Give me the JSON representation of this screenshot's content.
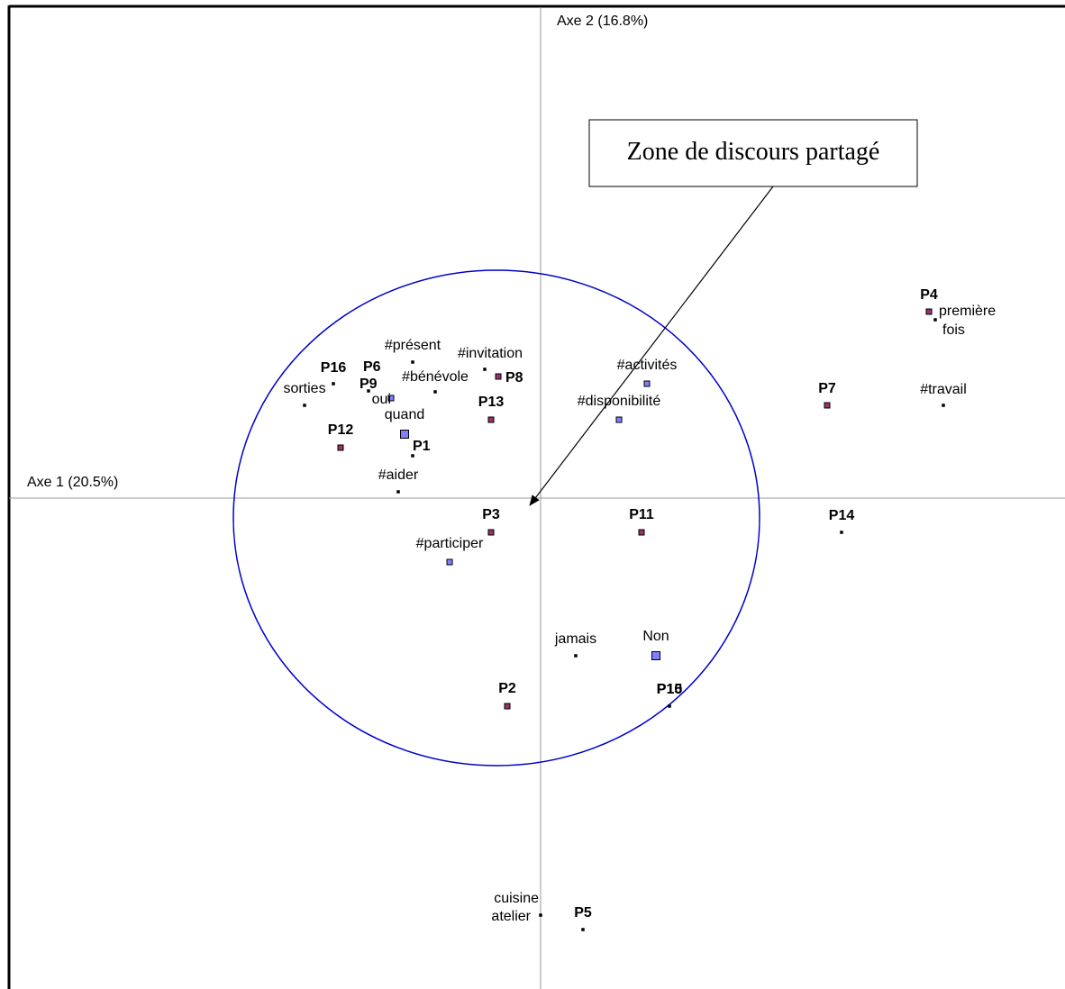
{
  "chart_data": {
    "type": "scatter",
    "title": "",
    "xlabel": "Axe 1 (20.5%)",
    "ylabel": "Axe 2 (16.8%)",
    "xlim": [
      -600,
      582
    ],
    "ylim": [
      -545,
      553
    ],
    "grid": false,
    "annotation": {
      "text": "Zone de discours partagé",
      "arrow_target": [
        -12,
        -8
      ]
    },
    "ellipse": {
      "cx": -49,
      "cy": -22,
      "rx": 292,
      "ry": 275,
      "color": "#0000cc"
    },
    "colors": {
      "P": "#993366",
      "M": "#8080ff",
      "B": "#000000",
      "axis": "#999999"
    },
    "points": [
      {
        "label": "P4",
        "x": 431,
        "y": 207,
        "cls": "P",
        "size": 6,
        "bold": true,
        "lx": 0,
        "ly": -14,
        "anchor": "middle"
      },
      {
        "label": "première",
        "x": 438,
        "y": 198,
        "cls": "B",
        "size": 3,
        "bold": false,
        "lx": 4,
        "ly": -5,
        "anchor": "start"
      },
      {
        "label": "fois",
        "x": 438,
        "y": 198,
        "cls": "B",
        "size": 0,
        "bold": false,
        "lx": 8,
        "ly": 16,
        "anchor": "start"
      },
      {
        "label": "P7",
        "x": 318,
        "y": 103,
        "cls": "P",
        "size": 6,
        "bold": true,
        "lx": 0,
        "ly": -14,
        "anchor": "middle"
      },
      {
        "label": "#travail",
        "x": 447,
        "y": 103,
        "cls": "B",
        "size": 3,
        "bold": false,
        "lx": 0,
        "ly": -13,
        "anchor": "middle"
      },
      {
        "label": "P14",
        "x": 334,
        "y": -38,
        "cls": "B",
        "size": 3,
        "bold": true,
        "lx": 0,
        "ly": -14,
        "anchor": "middle"
      },
      {
        "label": "#activités",
        "x": 118,
        "y": 127,
        "cls": "M",
        "size": 6,
        "bold": false,
        "lx": 0,
        "ly": -16,
        "anchor": "middle"
      },
      {
        "label": "#disponibilité",
        "x": 87,
        "y": 87,
        "cls": "M",
        "size": 6,
        "bold": false,
        "lx": 0,
        "ly": -16,
        "anchor": "middle"
      },
      {
        "label": "P11",
        "x": 112,
        "y": -38,
        "cls": "P",
        "size": 6,
        "bold": true,
        "lx": 0,
        "ly": -15,
        "anchor": "middle"
      },
      {
        "label": "Non",
        "x": 128,
        "y": -175,
        "cls": "M",
        "size": 9,
        "bold": false,
        "lx": 0,
        "ly": -17,
        "anchor": "middle"
      },
      {
        "label": "P10",
        "x": 143,
        "y": -231,
        "cls": "B",
        "size": 3,
        "bold": true,
        "lx": 0,
        "ly": -14,
        "anchor": "middle"
      },
      {
        "label": "P15",
        "x": 143,
        "y": -231,
        "cls": "B",
        "size": 0,
        "bold": true,
        "lx": 0,
        "ly": -14,
        "anchor": "middle"
      },
      {
        "label": "jamais",
        "x": 39,
        "y": -175,
        "cls": "B",
        "size": 3,
        "bold": false,
        "lx": 0,
        "ly": -14,
        "anchor": "middle"
      },
      {
        "label": "P2",
        "x": -37,
        "y": -231,
        "cls": "P",
        "size": 6,
        "bold": true,
        "lx": 0,
        "ly": -15,
        "anchor": "middle"
      },
      {
        "label": "P3",
        "x": -55,
        "y": -38,
        "cls": "P",
        "size": 6,
        "bold": true,
        "lx": 0,
        "ly": -15,
        "anchor": "middle"
      },
      {
        "label": "#participer",
        "x": -101,
        "y": -71,
        "cls": "M",
        "size": 6,
        "bold": false,
        "lx": 0,
        "ly": -16,
        "anchor": "middle"
      },
      {
        "label": "P13",
        "x": -55,
        "y": 87,
        "cls": "P",
        "size": 6,
        "bold": true,
        "lx": 0,
        "ly": -15,
        "anchor": "middle"
      },
      {
        "label": "P8",
        "x": -47,
        "y": 135,
        "cls": "P",
        "size": 6,
        "bold": true,
        "lx": 8,
        "ly": 6,
        "anchor": "start"
      },
      {
        "label": "#invitation",
        "x": -62,
        "y": 143,
        "cls": "B",
        "size": 3,
        "bold": false,
        "lx": 6,
        "ly": -13,
        "anchor": "middle"
      },
      {
        "label": "#bénévole",
        "x": -117,
        "y": 118,
        "cls": "B",
        "size": 3,
        "bold": false,
        "lx": 0,
        "ly": -12,
        "anchor": "middle"
      },
      {
        "label": "#présent",
        "x": -142,
        "y": 151,
        "cls": "B",
        "size": 3,
        "bold": false,
        "lx": 0,
        "ly": -14,
        "anchor": "middle"
      },
      {
        "label": "quand",
        "x": -151,
        "y": 71,
        "cls": "M",
        "size": 9,
        "bold": false,
        "lx": 0,
        "ly": -17,
        "anchor": "middle"
      },
      {
        "label": "P1",
        "x": -142,
        "y": 47,
        "cls": "B",
        "size": 3,
        "bold": true,
        "lx": 0,
        "ly": -6,
        "anchor": "start"
      },
      {
        "label": "#aider",
        "x": -158,
        "y": 7,
        "cls": "B",
        "size": 3,
        "bold": false,
        "lx": 0,
        "ly": -14,
        "anchor": "middle"
      },
      {
        "label": "oui",
        "x": -166,
        "y": 111,
        "cls": "M",
        "size": 6,
        "bold": false,
        "lx": 0,
        "ly": 6,
        "anchor": "end"
      },
      {
        "label": "P6",
        "x": -191,
        "y": 119,
        "cls": "B",
        "size": 3,
        "bold": true,
        "lx": -6,
        "ly": -22,
        "anchor": "start"
      },
      {
        "label": "P9",
        "x": -191,
        "y": 119,
        "cls": "B",
        "size": 0,
        "bold": true,
        "lx": -10,
        "ly": -3,
        "anchor": "start"
      },
      {
        "label": "P16",
        "x": -230,
        "y": 127,
        "cls": "B",
        "size": 3,
        "bold": true,
        "lx": 0,
        "ly": -13,
        "anchor": "middle"
      },
      {
        "label": "sorties",
        "x": -262,
        "y": 103,
        "cls": "B",
        "size": 3,
        "bold": false,
        "lx": 0,
        "ly": -14,
        "anchor": "middle"
      },
      {
        "label": "P12",
        "x": -222,
        "y": 56,
        "cls": "P",
        "size": 6,
        "bold": true,
        "lx": 0,
        "ly": -15,
        "anchor": "middle"
      },
      {
        "label": "cuisine",
        "x": 0,
        "y": -463,
        "cls": "B",
        "size": 3,
        "bold": false,
        "lx": -2,
        "ly": -14,
        "anchor": "end"
      },
      {
        "label": "atelier",
        "x": 0,
        "y": -463,
        "cls": "B",
        "size": 0,
        "bold": false,
        "lx": -11,
        "ly": 6,
        "anchor": "end"
      },
      {
        "label": "P5",
        "x": 47,
        "y": -479,
        "cls": "B",
        "size": 3,
        "bold": true,
        "lx": 0,
        "ly": -14,
        "anchor": "middle"
      }
    ]
  }
}
